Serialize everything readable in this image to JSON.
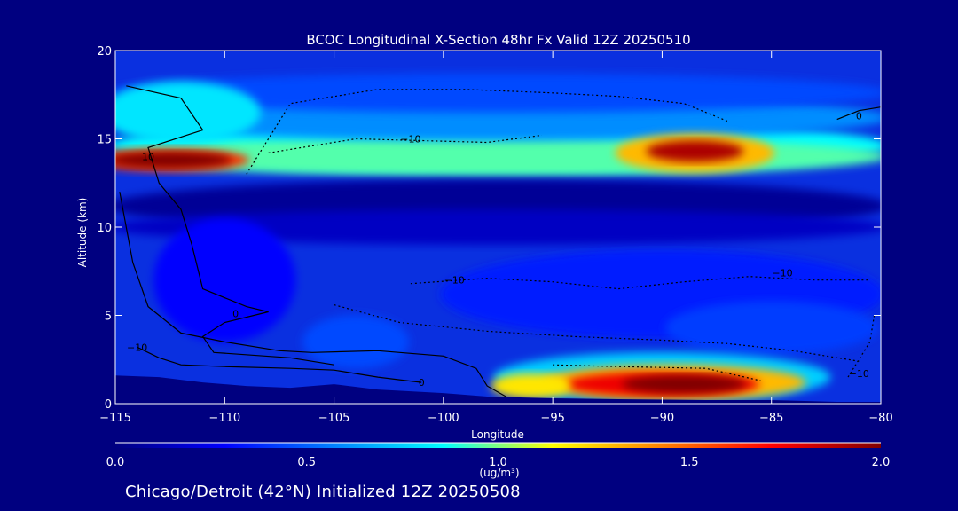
{
  "chart_data": {
    "type": "heatmap",
    "title": "BCOC Longitudinal X-Section 48hr  Fx Valid 12Z 20250510",
    "xlabel": "Longitude",
    "ylabel": "Altitude (km)",
    "xlim": [
      -115,
      -80
    ],
    "ylim": [
      0,
      20
    ],
    "x_ticks": [
      -115,
      -110,
      -105,
      -100,
      -95,
      -90,
      -85,
      -80
    ],
    "x_tick_labels": [
      "−115",
      "−110",
      "−105",
      "−100",
      "−95",
      "−90",
      "−85",
      "−80"
    ],
    "y_ticks": [
      0,
      5,
      10,
      15,
      20
    ],
    "y_tick_labels": [
      "0",
      "5",
      "10",
      "15",
      "20"
    ],
    "colorbar": {
      "min": 0.0,
      "max": 2.0,
      "ticks": [
        0.0,
        0.5,
        1.0,
        1.5,
        2.0
      ],
      "tick_labels": [
        "0.0",
        "0.5",
        "1.0",
        "1.5",
        "2.0"
      ],
      "unit_label": "(ug/m³)",
      "colormap": [
        "#000080",
        "#0000ff",
        "#0080ff",
        "#00ffff",
        "#ffff00",
        "#ff8000",
        "#ff0000",
        "#800000"
      ]
    },
    "features": [
      {
        "name": "upper layer max",
        "lon": -112.5,
        "alt": 13.8,
        "value": 2.0
      },
      {
        "name": "upper layer max",
        "lon": -88.5,
        "alt": 14.2,
        "value": 1.9
      },
      {
        "name": "boundary layer max",
        "lon": -89.0,
        "alt": 1.1,
        "value": 2.0
      },
      {
        "name": "mid-level minimum",
        "lon": -100.0,
        "alt": 11.0,
        "value": 0.1
      }
    ],
    "contour_labels": [
      {
        "text": "−10",
        "lon": -101.5,
        "alt": 14.8
      },
      {
        "text": "−10",
        "lon": -99.5,
        "alt": 6.8
      },
      {
        "text": "−10",
        "lon": -84.5,
        "alt": 7.2
      },
      {
        "text": "−10",
        "lon": -114.0,
        "alt": 3.0
      },
      {
        "text": "−10",
        "lon": -81.0,
        "alt": 1.5
      },
      {
        "text": "0",
        "lon": -109.5,
        "alt": 4.9
      },
      {
        "text": "0",
        "lon": -101.0,
        "alt": 1.0
      },
      {
        "text": "0",
        "lon": -81.0,
        "alt": 16.1
      },
      {
        "text": "10",
        "lon": -113.5,
        "alt": 13.8
      }
    ],
    "terrain_km": [
      [
        -115,
        1.6
      ],
      [
        -113,
        1.5
      ],
      [
        -111,
        1.2
      ],
      [
        -109,
        1.0
      ],
      [
        -107,
        0.9
      ],
      [
        -105,
        1.1
      ],
      [
        -103,
        0.8
      ],
      [
        -100,
        0.6
      ],
      [
        -98,
        0.4
      ],
      [
        -95,
        0.3
      ],
      [
        -92,
        0.25
      ],
      [
        -88,
        0.2
      ],
      [
        -85,
        0.2
      ],
      [
        -82,
        0.1
      ],
      [
        -80,
        0.1
      ]
    ]
  },
  "footer": "Chicago/Detroit (42°N) Initialized 12Z 20250508"
}
